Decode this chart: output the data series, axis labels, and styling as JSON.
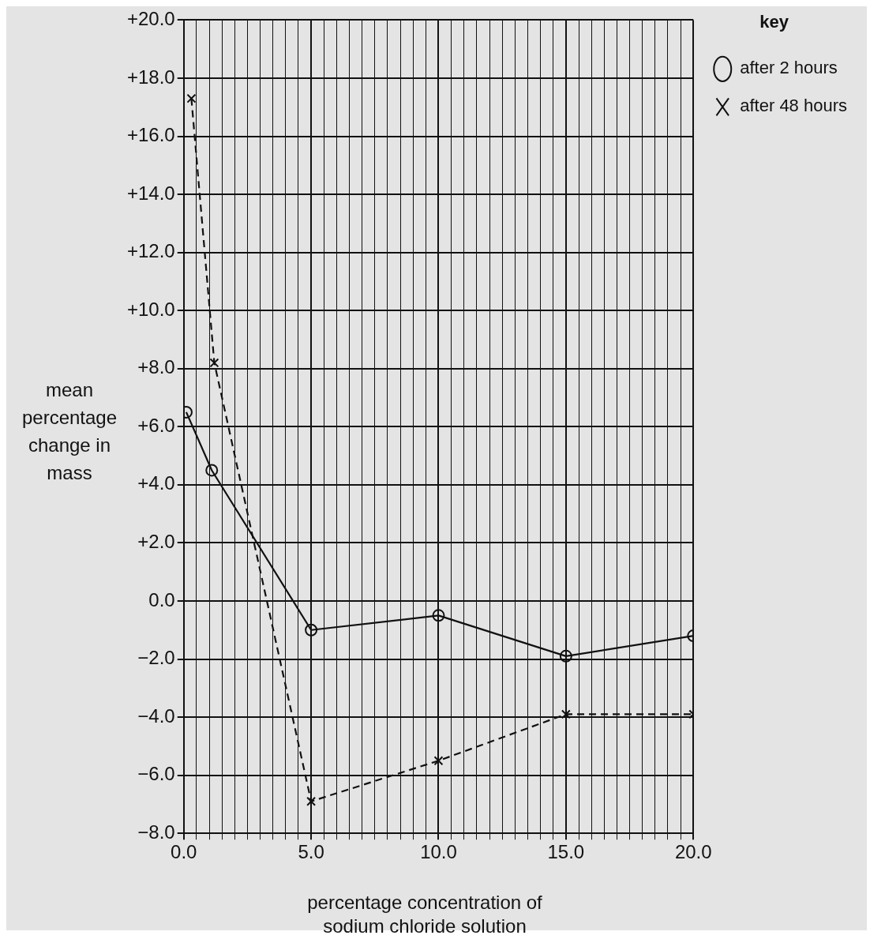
{
  "chart_data": {
    "type": "line",
    "xlabel": "percentage concentration of sodium chloride solution",
    "ylabel": "mean percentage change in mass",
    "legend_title": "key",
    "legend": "top right",
    "grid": true,
    "xlim": [
      0,
      20
    ],
    "ylim": [
      -8,
      20
    ],
    "xticks": [
      {
        "value": 0,
        "label": "0.0"
      },
      {
        "value": 0.5,
        "label": null
      },
      {
        "value": 1,
        "label": null
      },
      {
        "value": 1.5,
        "label": null
      },
      {
        "value": 2,
        "label": null
      },
      {
        "value": 2.5,
        "label": null
      },
      {
        "value": 3,
        "label": null
      },
      {
        "value": 3.5,
        "label": null
      },
      {
        "value": 4,
        "label": null
      },
      {
        "value": 4.5,
        "label": null
      },
      {
        "value": 5,
        "label": "5.0"
      },
      {
        "value": 5.5,
        "label": null
      },
      {
        "value": 6,
        "label": null
      },
      {
        "value": 6.5,
        "label": null
      },
      {
        "value": 7,
        "label": null
      },
      {
        "value": 7.5,
        "label": null
      },
      {
        "value": 8,
        "label": null
      },
      {
        "value": 8.5,
        "label": null
      },
      {
        "value": 9,
        "label": null
      },
      {
        "value": 9.5,
        "label": null
      },
      {
        "value": 10,
        "label": "10.0"
      },
      {
        "value": 10.5,
        "label": null
      },
      {
        "value": 11,
        "label": null
      },
      {
        "value": 11.5,
        "label": null
      },
      {
        "value": 12,
        "label": null
      },
      {
        "value": 12.5,
        "label": null
      },
      {
        "value": 13,
        "label": null
      },
      {
        "value": 13.5,
        "label": null
      },
      {
        "value": 14,
        "label": null
      },
      {
        "value": 14.5,
        "label": null
      },
      {
        "value": 15,
        "label": "15.0"
      },
      {
        "value": 15.5,
        "label": null
      },
      {
        "value": 16,
        "label": null
      },
      {
        "value": 16.5,
        "label": null
      },
      {
        "value": 17,
        "label": null
      },
      {
        "value": 17.5,
        "label": null
      },
      {
        "value": 18,
        "label": null
      },
      {
        "value": 18.5,
        "label": null
      },
      {
        "value": 19,
        "label": null
      },
      {
        "value": 19.5,
        "label": null
      },
      {
        "value": 20,
        "label": "20.0"
      }
    ],
    "yticks": [
      {
        "value": -8,
        "label": "−8.0"
      },
      {
        "value": -6,
        "label": "−6.0"
      },
      {
        "value": -4,
        "label": "−4.0"
      },
      {
        "value": -2,
        "label": "−2.0"
      },
      {
        "value": 0,
        "label": "0.0"
      },
      {
        "value": 2,
        "label": "+2.0"
      },
      {
        "value": 4,
        "label": "+4.0"
      },
      {
        "value": 6,
        "label": "+6.0"
      },
      {
        "value": 8,
        "label": "+8.0"
      },
      {
        "value": 10,
        "label": "+10.0"
      },
      {
        "value": 12,
        "label": "+12.0"
      },
      {
        "value": 14,
        "label": "+14.0"
      },
      {
        "value": 16,
        "label": "+16.0"
      },
      {
        "value": 18,
        "label": "+18.0"
      },
      {
        "value": 20,
        "label": "+20.0"
      }
    ],
    "series": [
      {
        "name": "after 2 hours",
        "color": "#111111",
        "marker": "circle",
        "line_style": "solid",
        "x": [
          0.1,
          1.1,
          5,
          10,
          15,
          20
        ],
        "values": [
          6.5,
          4.5,
          -1.0,
          -0.5,
          -1.9,
          -1.2
        ]
      },
      {
        "name": "after 48 hours",
        "color": "#111111",
        "marker": "cross",
        "line_style": "dashed",
        "x": [
          0.3,
          1.2,
          5,
          10,
          15,
          20
        ],
        "values": [
          17.3,
          8.2,
          -6.9,
          -5.5,
          -3.9,
          -3.9
        ]
      }
    ]
  }
}
